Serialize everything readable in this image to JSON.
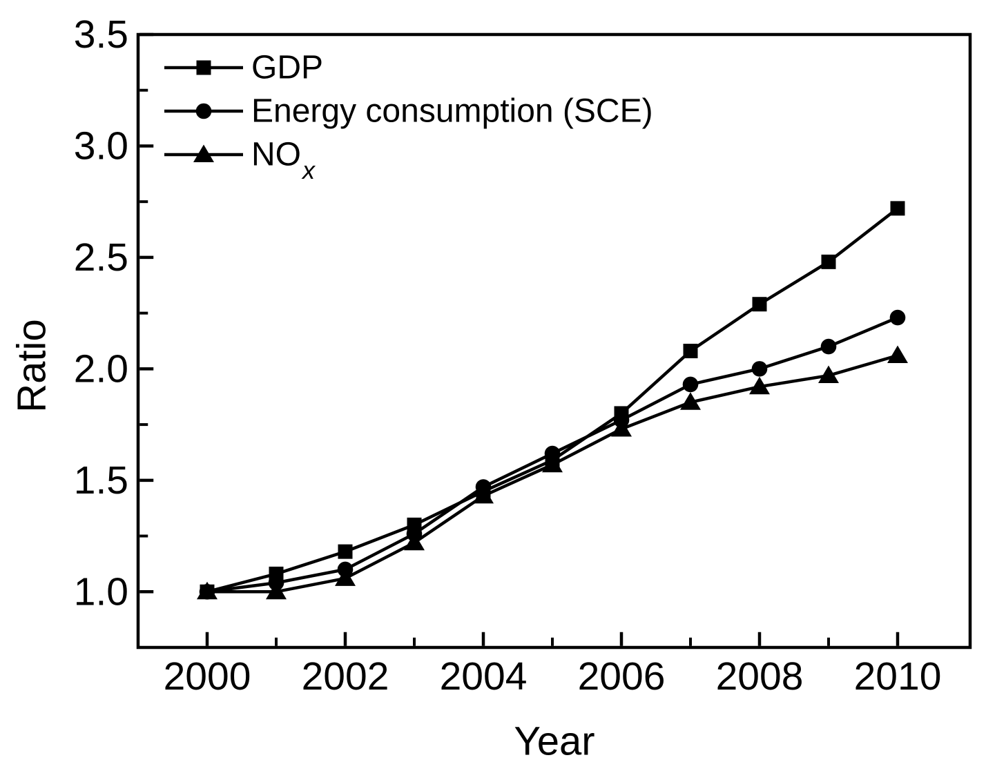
{
  "figure": {
    "background_color": "#ffffff",
    "ink_color": "#000000"
  },
  "chart_data": {
    "type": "line",
    "title": "",
    "xlabel": "Year",
    "ylabel": "Ratio",
    "x": [
      2000,
      2001,
      2002,
      2003,
      2004,
      2005,
      2006,
      2007,
      2008,
      2009,
      2010
    ],
    "series": [
      {
        "name": "GDP",
        "marker": "square",
        "color": "#000000",
        "values": [
          1.0,
          1.08,
          1.18,
          1.3,
          1.45,
          1.59,
          1.8,
          2.08,
          2.29,
          2.48,
          2.72
        ]
      },
      {
        "name": "Energy consumption (SCE)",
        "marker": "circle",
        "color": "#000000",
        "values": [
          1.0,
          1.04,
          1.1,
          1.26,
          1.47,
          1.62,
          1.77,
          1.93,
          2.0,
          2.1,
          2.23
        ]
      },
      {
        "name": "NO",
        "name_subscript": "x",
        "marker": "triangle-up",
        "color": "#000000",
        "values": [
          1.0,
          1.0,
          1.06,
          1.22,
          1.43,
          1.57,
          1.73,
          1.85,
          1.92,
          1.97,
          2.06
        ]
      }
    ],
    "xlim": [
      1999.0,
      2011.05
    ],
    "ylim": [
      0.75,
      3.5
    ],
    "x_major_ticks": [
      2000,
      2002,
      2004,
      2006,
      2008,
      2010
    ],
    "x_major_tick_labels": [
      "2000",
      "2002",
      "2004",
      "2006",
      "2008",
      "2010"
    ],
    "x_minor_ticks": [
      2001,
      2003,
      2005,
      2007,
      2009
    ],
    "y_major_ticks": [
      1.0,
      1.5,
      2.0,
      2.5,
      3.0,
      3.5
    ],
    "y_major_tick_labels": [
      "1.0",
      "1.5",
      "2.0",
      "2.5",
      "3.0",
      "3.5"
    ],
    "y_minor_ticks": [
      1.25,
      1.75,
      2.25,
      2.75,
      3.25
    ],
    "grid": false,
    "legend_position": "top-left-inside"
  },
  "legend": {
    "items": [
      {
        "label": "GDP",
        "subscript": "",
        "marker": "square"
      },
      {
        "label": "Energy consumption (SCE)",
        "subscript": "",
        "marker": "circle"
      },
      {
        "label": "NO",
        "subscript": "x",
        "marker": "triangle-up"
      }
    ]
  }
}
